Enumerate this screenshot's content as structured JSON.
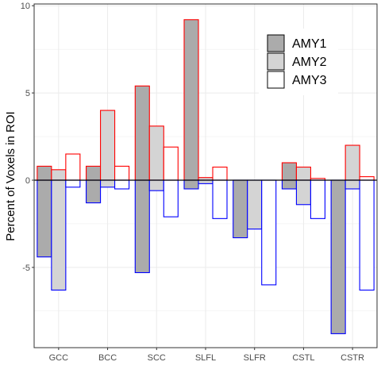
{
  "chart_data": {
    "type": "bar",
    "categories": [
      "GCC",
      "BCC",
      "SCC",
      "SLFL",
      "SLFR",
      "CSTL",
      "CSTR"
    ],
    "ylabel": "Percent of Voxels in ROI",
    "xlabel": "",
    "ylim": [
      -9.6,
      10.1
    ],
    "yticks": [
      10,
      5,
      0,
      -5
    ],
    "ytick_labels": [
      "10",
      "5",
      "0",
      "-5"
    ],
    "grid": true,
    "legend_position": "top-right",
    "series": [
      {
        "name": "AMY1",
        "fill": "#ababab",
        "pos": [
          0.8,
          0.8,
          5.4,
          9.2,
          0,
          1.0,
          0
        ],
        "neg": [
          -4.4,
          -1.3,
          -5.3,
          -0.5,
          -3.3,
          -0.5,
          -8.8
        ]
      },
      {
        "name": "AMY2",
        "fill": "#d4d4d4",
        "pos": [
          0.6,
          4.0,
          3.1,
          0.15,
          0,
          0.75,
          2.0
        ],
        "neg": [
          -6.3,
          -0.4,
          -0.6,
          -0.2,
          -2.8,
          -1.4,
          -0.5
        ]
      },
      {
        "name": "AMY3",
        "fill": "#ffffff",
        "pos": [
          1.5,
          0.8,
          1.9,
          0.75,
          0,
          0.1,
          0.2
        ],
        "neg": [
          -0.4,
          -0.5,
          -2.1,
          -2.2,
          -6.0,
          -2.2,
          -6.3
        ]
      }
    ],
    "positive_outline": "#ff0000",
    "negative_outline": "#0000ff"
  }
}
